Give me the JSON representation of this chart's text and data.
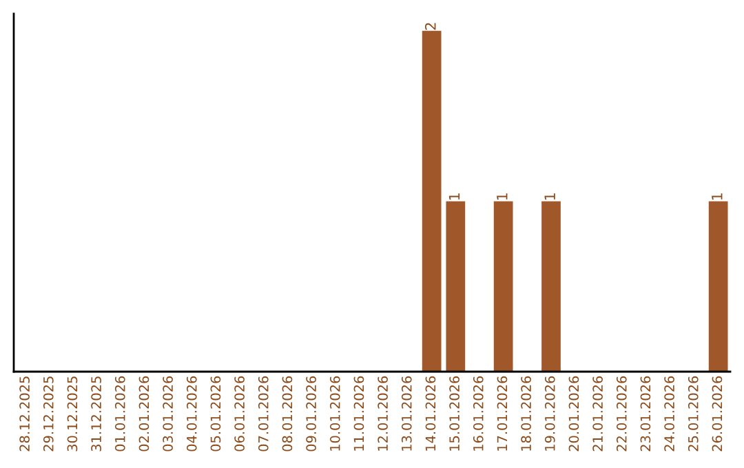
{
  "chart_data": {
    "type": "bar",
    "categories": [
      "28.12.2025",
      "29.12.2025",
      "30.12.2025",
      "31.12.2025",
      "01.01.2026",
      "02.01.2026",
      "03.01.2026",
      "04.01.2026",
      "05.01.2026",
      "06.01.2026",
      "07.01.2026",
      "08.01.2026",
      "09.01.2026",
      "10.01.2026",
      "11.01.2026",
      "12.01.2026",
      "13.01.2026",
      "14.01.2026",
      "15.01.2026",
      "16.01.2026",
      "17.01.2026",
      "18.01.2026",
      "19.01.2026",
      "20.01.2026",
      "21.01.2026",
      "22.01.2026",
      "23.01.2026",
      "24.01.2026",
      "25.01.2026",
      "26.01.2026"
    ],
    "values": [
      null,
      null,
      null,
      null,
      null,
      null,
      null,
      null,
      null,
      null,
      null,
      null,
      null,
      null,
      null,
      null,
      null,
      2,
      1,
      null,
      1,
      null,
      1,
      null,
      null,
      null,
      null,
      null,
      null,
      1
    ],
    "data_labels": true,
    "color": "#a0572a",
    "tick_labels": "x"
  }
}
